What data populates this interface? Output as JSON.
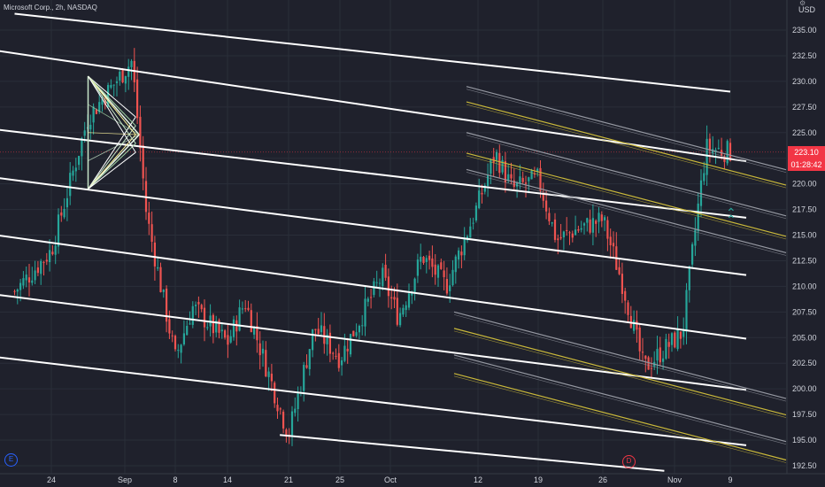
{
  "header": {
    "title": "Microsoft Corp., 2h, NASDAQ",
    "currency": "USD"
  },
  "badges": {
    "last_price": "223.10",
    "countdown": "01:28:42",
    "earnings": "E",
    "dividend": "D"
  },
  "colors": {
    "background": "#1f212c",
    "up": "#26a69a",
    "down": "#ef5350",
    "channel": "#ffffff",
    "fib_yellow": "#c9b83a",
    "fib_gray": "#9598a1",
    "pitchfork": "#c8e6c9",
    "badge_red": "#f23645",
    "text": "#d1d4dc"
  },
  "chart_data": {
    "type": "candlestick",
    "symbol": "Microsoft Corp.",
    "interval": "2h",
    "exchange": "NASDAQ",
    "ylim": [
      192.0,
      237.0
    ],
    "y_ticks": [
      "192.50",
      "195.00",
      "197.50",
      "200.00",
      "202.50",
      "205.00",
      "207.50",
      "210.00",
      "212.50",
      "215.00",
      "217.50",
      "220.00",
      "222.50",
      "225.00",
      "227.50",
      "230.00",
      "232.50",
      "235.00"
    ],
    "x_ticks": [
      "24",
      "Sep",
      "8",
      "14",
      "21",
      "25",
      "Oct",
      "12",
      "19",
      "26",
      "Nov",
      "9"
    ],
    "last_price": 223.1,
    "price_path": [
      {
        "date": "2020-08-20",
        "close": 209.5
      },
      {
        "date": "2020-08-24",
        "close": 213.5
      },
      {
        "date": "2020-08-28",
        "close": 226.5
      },
      {
        "date": "2020-09-02",
        "close": 232.0
      },
      {
        "date": "2020-09-04",
        "close": 217.0
      },
      {
        "date": "2020-09-08",
        "close": 203.0
      },
      {
        "date": "2020-09-10",
        "close": 208.0
      },
      {
        "date": "2020-09-14",
        "close": 204.5
      },
      {
        "date": "2020-09-16",
        "close": 208.5
      },
      {
        "date": "2020-09-21",
        "close": 195.5
      },
      {
        "date": "2020-09-23",
        "close": 206.0
      },
      {
        "date": "2020-09-25",
        "close": 203.0
      },
      {
        "date": "2020-09-30",
        "close": 211.0
      },
      {
        "date": "2020-10-02",
        "close": 207.0
      },
      {
        "date": "2020-10-05",
        "close": 213.0
      },
      {
        "date": "2020-10-08",
        "close": 210.0
      },
      {
        "date": "2020-10-12",
        "close": 218.0
      },
      {
        "date": "2020-10-14",
        "close": 223.0
      },
      {
        "date": "2020-10-16",
        "close": 219.5
      },
      {
        "date": "2020-10-19",
        "close": 220.5
      },
      {
        "date": "2020-10-21",
        "close": 214.5
      },
      {
        "date": "2020-10-23",
        "close": 215.5
      },
      {
        "date": "2020-10-26",
        "close": 216.5
      },
      {
        "date": "2020-10-28",
        "close": 210.0
      },
      {
        "date": "2020-10-30",
        "close": 202.0
      },
      {
        "date": "2020-11-03",
        "close": 205.5
      },
      {
        "date": "2020-11-05",
        "close": 218.0
      },
      {
        "date": "2020-11-06",
        "close": 223.5
      },
      {
        "date": "2020-11-09",
        "close": 223.1
      }
    ],
    "channel_lines": [
      {
        "start": {
          "date": "2020-08-20",
          "price": 236.6
        },
        "end": {
          "date": "2020-11-09",
          "price": 229.0
        }
      },
      {
        "start": {
          "date": "2020-08-18",
          "price": 233.0
        },
        "end": {
          "date": "2020-11-11",
          "price": 222.2
        }
      },
      {
        "start": {
          "date": "2020-08-18",
          "price": 225.3
        },
        "end": {
          "date": "2020-11-11",
          "price": 216.7
        }
      },
      {
        "start": {
          "date": "2020-08-18",
          "price": 220.6
        },
        "end": {
          "date": "2020-11-11",
          "price": 211.1
        }
      },
      {
        "start": {
          "date": "2020-08-18",
          "price": 215.0
        },
        "end": {
          "date": "2020-11-11",
          "price": 204.9
        }
      },
      {
        "start": {
          "date": "2020-08-18",
          "price": 209.2
        },
        "end": {
          "date": "2020-11-11",
          "price": 199.9
        }
      },
      {
        "start": {
          "date": "2020-08-18",
          "price": 203.1
        },
        "end": {
          "date": "2020-11-11",
          "price": 194.5
        }
      },
      {
        "start": {
          "date": "2020-09-20",
          "price": 195.5
        },
        "end": {
          "date": "2020-11-01",
          "price": 192.0
        }
      }
    ],
    "fib_upper_gray": [
      229.5,
      225.0,
      221.4
    ],
    "fib_upper_yellow": [
      228.0,
      223.0
    ],
    "fib_lower_gray": [
      207.5,
      203.3
    ],
    "fib_lower_yellow": [
      205.9,
      201.5
    ],
    "pitchfork": {
      "pivot_a": {
        "date": "2020-08-28",
        "price": 230.5
      },
      "pivot_b": {
        "date": "2020-08-28",
        "price": 219.5
      },
      "apex": {
        "date": "2020-09-03",
        "price": 224.8
      }
    }
  }
}
